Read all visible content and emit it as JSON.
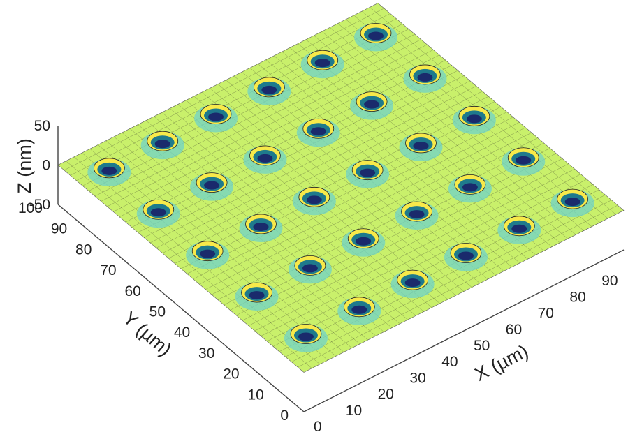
{
  "chart_data": {
    "type": "surface",
    "title": "",
    "x_axis": {
      "label": "X (µm)",
      "ticks": [
        "0",
        "10",
        "20",
        "30",
        "40",
        "50",
        "60",
        "70",
        "80",
        "90"
      ],
      "range": [
        0,
        100
      ]
    },
    "y_axis": {
      "label": "Y (µm)",
      "ticks": [
        "0",
        "10",
        "20",
        "30",
        "40",
        "50",
        "60",
        "70",
        "80",
        "90",
        "100"
      ],
      "range": [
        0,
        100
      ]
    },
    "z_axis": {
      "label": "Z (nm)",
      "ticks": [
        "-50",
        "0",
        "50"
      ],
      "range": [
        -50,
        50
      ]
    },
    "surface": {
      "description_free": true,
      "base_height_nm": 0,
      "pit_pitch_um": 18,
      "pit_depth_nm": -45,
      "rim_height_nm": 20,
      "pit_rows": 5,
      "pit_cols": 6,
      "colormap": [
        "#1a2a6c",
        "#1f7a8c",
        "#6fd3c8",
        "#c9f06b",
        "#f7e94a"
      ]
    }
  }
}
